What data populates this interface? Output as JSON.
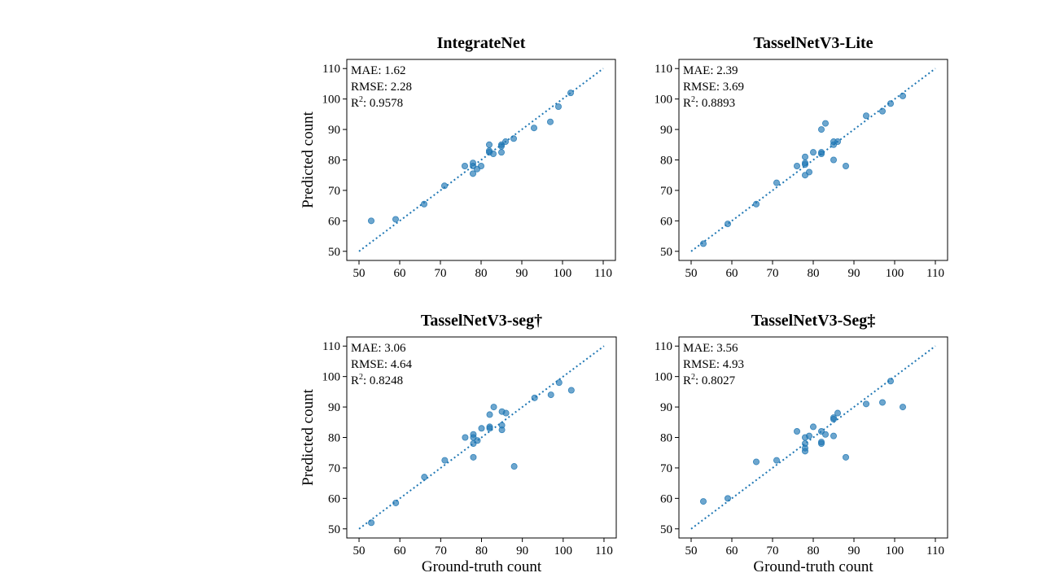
{
  "chart_data": [
    {
      "type": "scatter",
      "title": "IntegrateNet",
      "xlabel": "",
      "ylabel": "Predicted count",
      "xlim": [
        47,
        113
      ],
      "ylim": [
        47,
        113
      ],
      "xticks": [
        50,
        60,
        70,
        80,
        90,
        100,
        110
      ],
      "yticks": [
        50,
        60,
        70,
        80,
        90,
        100,
        110
      ],
      "reference_line": [
        [
          50,
          50
        ],
        [
          110,
          110
        ]
      ],
      "stats": {
        "mae": "MAE:  1.62",
        "rmse": "RMSE:  2.28",
        "r2_prefix": "R",
        "r2_sup": "2",
        "r2_value": ": 0.9578"
      },
      "points": [
        [
          53,
          60
        ],
        [
          59,
          60.5
        ],
        [
          66,
          65.5
        ],
        [
          71,
          71.5
        ],
        [
          76,
          78
        ],
        [
          78,
          75.5
        ],
        [
          78,
          78
        ],
        [
          78,
          79
        ],
        [
          79,
          77
        ],
        [
          80,
          78
        ],
        [
          82,
          82.5
        ],
        [
          82,
          83
        ],
        [
          82,
          85
        ],
        [
          83,
          82
        ],
        [
          85,
          82.5
        ],
        [
          85,
          84.5
        ],
        [
          85,
          85
        ],
        [
          86,
          86
        ],
        [
          88,
          87
        ],
        [
          93,
          90.5
        ],
        [
          97,
          92.5
        ],
        [
          99,
          97.5
        ],
        [
          102,
          102
        ]
      ]
    },
    {
      "type": "scatter",
      "title": "TasselNetV3-Lite",
      "xlabel": "",
      "ylabel": "",
      "xlim": [
        47,
        113
      ],
      "ylim": [
        47,
        113
      ],
      "xticks": [
        50,
        60,
        70,
        80,
        90,
        100,
        110
      ],
      "yticks": [
        50,
        60,
        70,
        80,
        90,
        100,
        110
      ],
      "reference_line": [
        [
          50,
          50
        ],
        [
          110,
          110
        ]
      ],
      "stats": {
        "mae": "MAE:  2.39",
        "rmse": "RMSE:  3.69",
        "r2_prefix": "R",
        "r2_sup": "2",
        "r2_value": ": 0.8893"
      },
      "points": [
        [
          53,
          52.5
        ],
        [
          59,
          59
        ],
        [
          66,
          65.5
        ],
        [
          71,
          72.5
        ],
        [
          76,
          78
        ],
        [
          78,
          75
        ],
        [
          78,
          78.5
        ],
        [
          78,
          79
        ],
        [
          78,
          81
        ],
        [
          79,
          76
        ],
        [
          80,
          82.5
        ],
        [
          82,
          82
        ],
        [
          82,
          82.5
        ],
        [
          82,
          90
        ],
        [
          83,
          92
        ],
        [
          85,
          80
        ],
        [
          85,
          85
        ],
        [
          85,
          86
        ],
        [
          86,
          86
        ],
        [
          88,
          78
        ],
        [
          93,
          94.5
        ],
        [
          97,
          96
        ],
        [
          99,
          98.5
        ],
        [
          102,
          101
        ]
      ]
    },
    {
      "type": "scatter",
      "title": "TasselNetV3-seg†",
      "xlabel": "Ground-truth  count",
      "ylabel": "Predicted count",
      "xlim": [
        47,
        113
      ],
      "ylim": [
        47,
        113
      ],
      "xticks": [
        50,
        60,
        70,
        80,
        90,
        100,
        110
      ],
      "yticks": [
        50,
        60,
        70,
        80,
        90,
        100,
        110
      ],
      "reference_line": [
        [
          50,
          50
        ],
        [
          110,
          110
        ]
      ],
      "stats": {
        "mae": "MAE:  3.06",
        "rmse": "RMSE:  4.64",
        "r2_prefix": "R",
        "r2_sup": "2",
        "r2_value": ": 0.8248"
      },
      "points": [
        [
          53,
          52
        ],
        [
          59,
          58.5
        ],
        [
          66,
          67
        ],
        [
          71,
          72.5
        ],
        [
          76,
          80
        ],
        [
          78,
          73.5
        ],
        [
          78,
          78
        ],
        [
          78,
          80
        ],
        [
          78,
          81
        ],
        [
          79,
          79
        ],
        [
          80,
          83
        ],
        [
          82,
          83
        ],
        [
          82,
          83.5
        ],
        [
          82,
          87.5
        ],
        [
          83,
          90
        ],
        [
          85,
          82.5
        ],
        [
          85,
          84
        ],
        [
          85,
          88.5
        ],
        [
          86,
          88
        ],
        [
          88,
          70.5
        ],
        [
          93,
          93
        ],
        [
          97,
          94
        ],
        [
          99,
          98
        ],
        [
          102,
          95.5
        ]
      ]
    },
    {
      "type": "scatter",
      "title": "TasselNetV3-Seg‡",
      "xlabel": "Ground-truth  count",
      "ylabel": "",
      "xlim": [
        47,
        113
      ],
      "ylim": [
        47,
        113
      ],
      "xticks": [
        50,
        60,
        70,
        80,
        90,
        100,
        110
      ],
      "yticks": [
        50,
        60,
        70,
        80,
        90,
        100,
        110
      ],
      "reference_line": [
        [
          50,
          50
        ],
        [
          110,
          110
        ]
      ],
      "stats": {
        "mae": "MAE:  3.56",
        "rmse": "RMSE:  4.93",
        "r2_prefix": "R",
        "r2_sup": "2",
        "r2_value": ": 0.8027"
      },
      "points": [
        [
          53,
          59
        ],
        [
          59,
          60
        ],
        [
          66,
          72
        ],
        [
          71,
          72.5
        ],
        [
          76,
          82
        ],
        [
          78,
          75.5
        ],
        [
          78,
          76.5
        ],
        [
          78,
          78
        ],
        [
          78,
          80
        ],
        [
          79,
          80.5
        ],
        [
          80,
          83.5
        ],
        [
          82,
          78
        ],
        [
          82,
          78.5
        ],
        [
          82,
          82
        ],
        [
          83,
          81
        ],
        [
          85,
          80.5
        ],
        [
          85,
          86
        ],
        [
          85,
          86.5
        ],
        [
          86,
          88
        ],
        [
          88,
          73.5
        ],
        [
          93,
          91
        ],
        [
          97,
          91.5
        ],
        [
          99,
          98.5
        ],
        [
          102,
          90
        ]
      ]
    }
  ]
}
